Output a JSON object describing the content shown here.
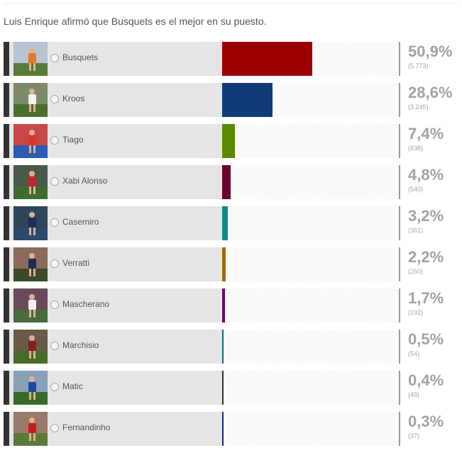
{
  "question": "Luis Enrique afirmó que Busquets es el mejor en su puesto.",
  "options": [
    {
      "name": "Busquets",
      "percent": "50,9%",
      "votes": "(5.773)",
      "share": 0.509,
      "color": "#9c0000",
      "photo": [
        "#b8c4d2",
        "#e8781e",
        "#5b7a3a"
      ]
    },
    {
      "name": "Kroos",
      "percent": "28,6%",
      "votes": "(3.245)",
      "share": 0.286,
      "color": "#0e3a78",
      "photo": [
        "#7a8a6a",
        "#f2f2f2",
        "#4b6e2e"
      ]
    },
    {
      "name": "Tiago",
      "percent": "7,4%",
      "votes": "(838)",
      "share": 0.074,
      "color": "#5a8a00",
      "photo": [
        "#c84848",
        "#d43a2a",
        "#2a5db0"
      ]
    },
    {
      "name": "Xabi Alonso",
      "percent": "4,8%",
      "votes": "(540)",
      "share": 0.048,
      "color": "#6b0033",
      "photo": [
        "#4a5a4a",
        "#cc1f2a",
        "#3f6b32"
      ]
    },
    {
      "name": "Casemiro",
      "percent": "3,2%",
      "votes": "(361)",
      "share": 0.032,
      "color": "#0f8a8a",
      "photo": [
        "#30445a",
        "#1e2d5a",
        "#2a4a6a"
      ]
    },
    {
      "name": "Verratti",
      "percent": "2,2%",
      "votes": "(250)",
      "share": 0.022,
      "color": "#9a6b00",
      "photo": [
        "#8a6a5a",
        "#1d2a5c",
        "#3a4a2a"
      ]
    },
    {
      "name": "Mascherano",
      "percent": "1,7%",
      "votes": "(192)",
      "share": 0.017,
      "color": "#6a0a6a",
      "photo": [
        "#6a4a5a",
        "#f0f0f0",
        "#4a6a3a"
      ]
    },
    {
      "name": "Marchisio",
      "percent": "0,5%",
      "votes": "(54)",
      "share": 0.005,
      "color": "#1a6a6a",
      "photo": [
        "#6a5a4a",
        "#8a1a2a",
        "#4a6a2a"
      ]
    },
    {
      "name": "Matic",
      "percent": "0,4%",
      "votes": "(49)",
      "share": 0.004,
      "color": "#333333",
      "photo": [
        "#8aa0b8",
        "#1a4aa0",
        "#3a6a2a"
      ]
    },
    {
      "name": "Fernandinho",
      "percent": "0,3%",
      "votes": "(37)",
      "share": 0.003,
      "color": "#1a2a6a",
      "photo": [
        "#9a7a6a",
        "#cc1a1a",
        "#5a7a3a"
      ]
    }
  ]
}
